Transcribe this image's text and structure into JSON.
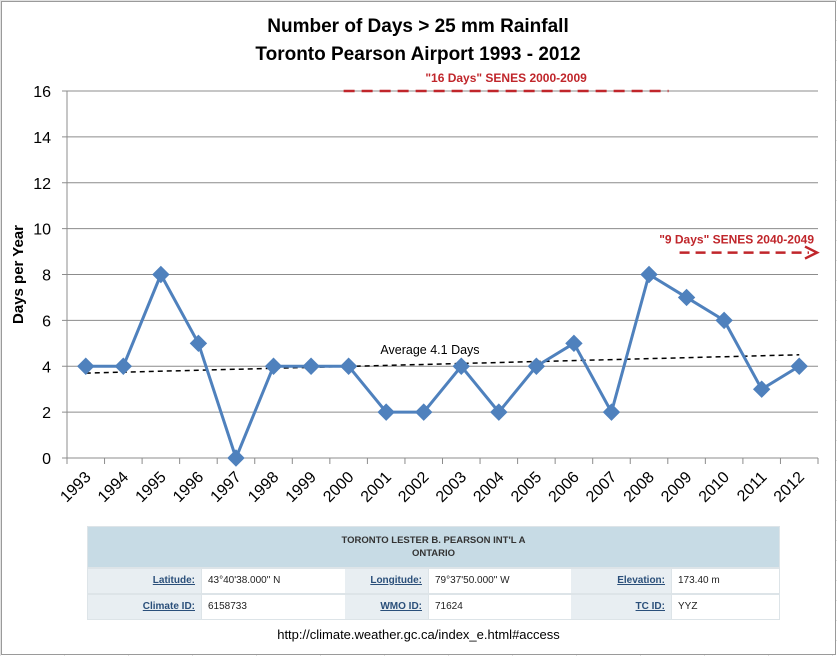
{
  "chart_data": {
    "type": "line",
    "title": [
      "Number of Days > 25 mm Rainfall",
      "Toronto Pearson Airport 1993 - 2012"
    ],
    "xlabel": "",
    "ylabel": "Days per Year",
    "ylim": [
      0,
      16
    ],
    "yticks": [
      0,
      2,
      4,
      6,
      8,
      10,
      12,
      14,
      16
    ],
    "categories": [
      "1993",
      "1994",
      "1995",
      "1996",
      "1997",
      "1998",
      "1999",
      "2000",
      "2001",
      "2002",
      "2003",
      "2004",
      "2005",
      "2006",
      "2007",
      "2008",
      "2009",
      "2010",
      "2011",
      "2012"
    ],
    "series": [
      {
        "name": "Days > 25 mm",
        "values": [
          4,
          4,
          8,
          5,
          0,
          4,
          4,
          4,
          2,
          2,
          4,
          2,
          4,
          5,
          2,
          8,
          7,
          6,
          3,
          4
        ],
        "color": "#4f81bd",
        "marker": "diamond"
      }
    ],
    "trendline": {
      "label": "Average 4.1 Days",
      "start": 3.7,
      "end": 4.5,
      "color": "#000000",
      "style": "dashed"
    },
    "reference_lines": [
      {
        "label": "\"16 Days\" SENES 2000-2009",
        "value": 16,
        "from": "2000",
        "to": "2009",
        "color": "#c0262b",
        "style": "dashed"
      },
      {
        "label": "\"9 Days\" SENES 2040-2049",
        "value": 9,
        "from": "2009",
        "to": "2012",
        "color": "#c0262b",
        "style": "dashed-arrow"
      }
    ],
    "gridlines": true,
    "legend": "none"
  },
  "station": {
    "name": "TORONTO LESTER B. PEARSON INT'L A",
    "province": "ONTARIO",
    "rows": [
      [
        {
          "label": "Latitude:",
          "value": "43°40'38.000\" N"
        },
        {
          "label": "Longitude:",
          "value": "79°37'50.000\" W"
        },
        {
          "label": "Elevation:",
          "value": "173.40 m"
        }
      ],
      [
        {
          "label": "Climate ID:",
          "value": "6158733"
        },
        {
          "label": "WMO ID:",
          "value": "71624"
        },
        {
          "label": "TC ID:",
          "value": "YYZ"
        }
      ]
    ]
  },
  "source_url": "http://climate.weather.gc.ca/index_e.html#access"
}
